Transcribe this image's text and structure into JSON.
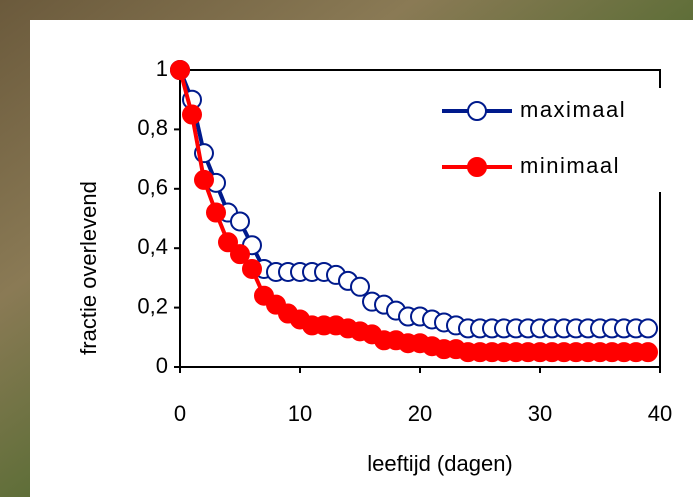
{
  "chart_data": {
    "type": "line",
    "xlabel": "leeftijd (dagen)",
    "ylabel": "fractie overlevend",
    "x": [
      0,
      1,
      2,
      3,
      4,
      5,
      6,
      7,
      8,
      9,
      10,
      11,
      12,
      13,
      14,
      15,
      16,
      17,
      18,
      19,
      20,
      21,
      22,
      23,
      24,
      25,
      26,
      27,
      28,
      29,
      30,
      31,
      32,
      33,
      34,
      35,
      36,
      37,
      38,
      39
    ],
    "series": [
      {
        "name": "maximaal",
        "color": "#001a8c",
        "marker": "open",
        "values": [
          1,
          0.9,
          0.72,
          0.62,
          0.52,
          0.49,
          0.41,
          0.33,
          0.32,
          0.32,
          0.32,
          0.32,
          0.32,
          0.31,
          0.29,
          0.27,
          0.22,
          0.21,
          0.19,
          0.17,
          0.17,
          0.16,
          0.15,
          0.14,
          0.13,
          0.13,
          0.13,
          0.13,
          0.13,
          0.13,
          0.13,
          0.13,
          0.13,
          0.13,
          0.13,
          0.13,
          0.13,
          0.13,
          0.13,
          0.13
        ]
      },
      {
        "name": "minimaal",
        "color": "#ff0000",
        "marker": "filled",
        "values": [
          1,
          0.85,
          0.63,
          0.52,
          0.42,
          0.38,
          0.33,
          0.24,
          0.21,
          0.18,
          0.16,
          0.14,
          0.14,
          0.14,
          0.13,
          0.12,
          0.11,
          0.09,
          0.09,
          0.08,
          0.08,
          0.07,
          0.06,
          0.06,
          0.05,
          0.05,
          0.05,
          0.05,
          0.05,
          0.05,
          0.05,
          0.05,
          0.05,
          0.05,
          0.05,
          0.05,
          0.05,
          0.05,
          0.05,
          0.05
        ]
      }
    ],
    "xlim": [
      0,
      40
    ],
    "xticks": [
      0,
      10,
      20,
      30,
      40
    ],
    "ylim": [
      0,
      1
    ],
    "yticks": [
      0,
      {
        "value": 0.2,
        "label": "0,2"
      },
      {
        "value": 0.4,
        "label": "0,4"
      },
      {
        "value": 0.6,
        "label": "0,6"
      },
      {
        "value": 0.8,
        "label": "0,8"
      },
      1
    ],
    "legend": "upper right"
  }
}
